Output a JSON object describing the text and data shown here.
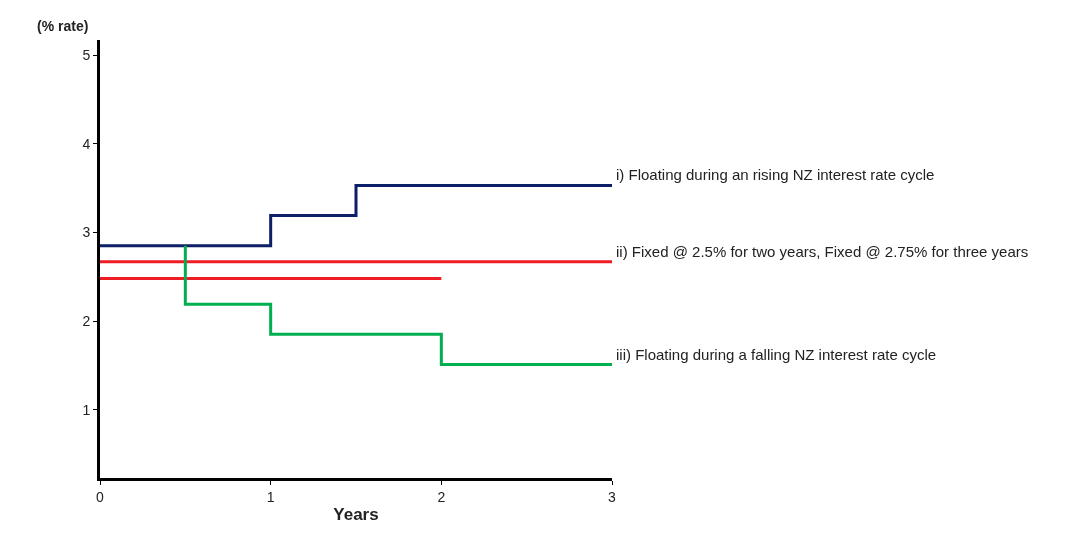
{
  "chart_data": {
    "type": "line",
    "xlabel": "Years",
    "ylabel": "(% rate)",
    "xlim": [
      0,
      3
    ],
    "ylim": [
      0.23,
      5.17
    ],
    "xticks": [
      0,
      1,
      2,
      3
    ],
    "yticks": [
      1,
      2,
      3,
      4,
      5
    ],
    "series": [
      {
        "name": "i) Floating during an rising NZ interest rate cycle",
        "color": "#0d1f66",
        "x": [
          0,
          1,
          1,
          1.5,
          1.5,
          3
        ],
        "values": [
          2.85,
          2.85,
          3.19,
          3.19,
          3.53,
          3.53
        ]
      },
      {
        "name": "ii) Fixed @ 2.5% for two years, Fixed @ 2.75% for three years",
        "color": "#ee1c24",
        "x": [
          0,
          3
        ],
        "values": [
          2.67,
          2.67
        ]
      },
      {
        "color": "#ee1c24",
        "x": [
          0,
          2
        ],
        "values": [
          2.48,
          2.48
        ]
      },
      {
        "name": "iii) Floating during a falling NZ interest rate cycle",
        "color": "#00b050",
        "x": [
          0.5,
          0.5,
          1,
          1,
          2,
          2,
          3
        ],
        "values": [
          2.85,
          2.19,
          2.19,
          1.85,
          1.85,
          1.51,
          1.51
        ]
      }
    ]
  }
}
